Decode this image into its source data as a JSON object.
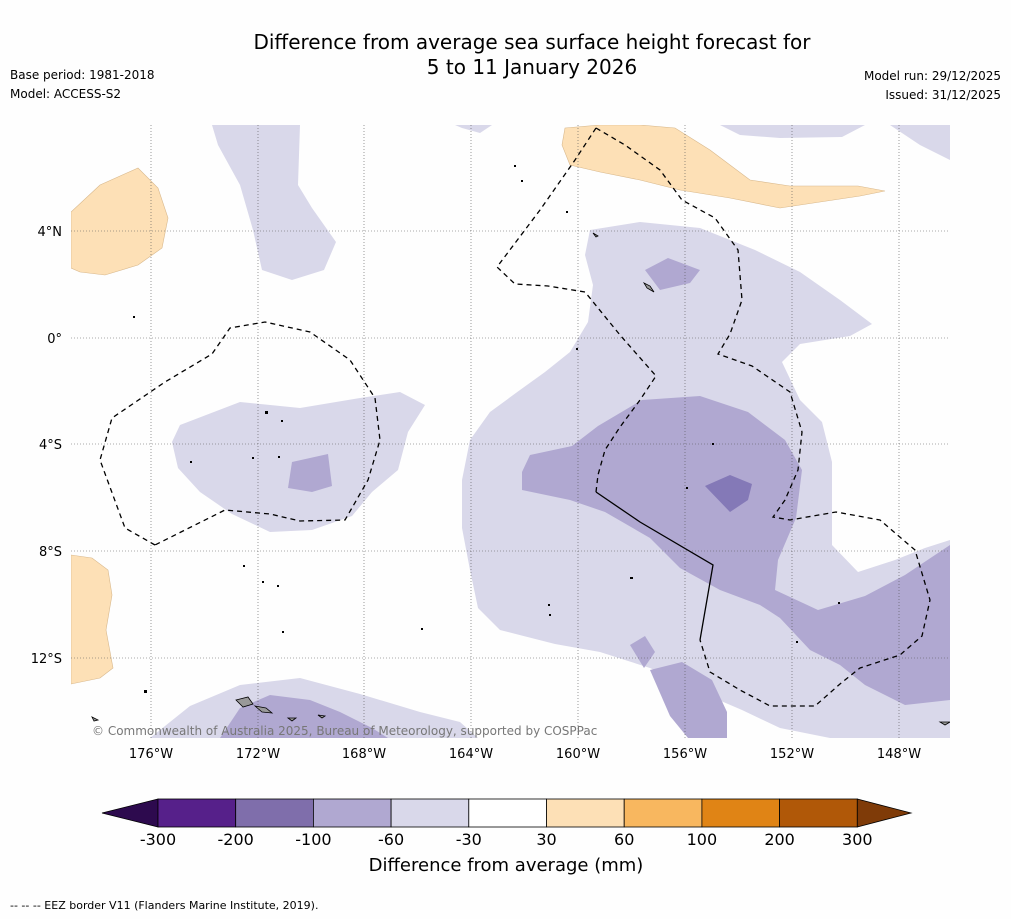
{
  "title": {
    "line1": "Difference from average sea surface height forecast for",
    "line2": "5 to 11 January 2026"
  },
  "meta_left": {
    "base_period": "Base period: 1981-2018",
    "model": "Model: ACCESS-S2"
  },
  "meta_right": {
    "model_run": "Model run: 29/12/2025",
    "issued": "Issued: 31/12/2025"
  },
  "map": {
    "lat_labels": [
      "4°N",
      "0°",
      "4°S",
      "8°S",
      "12°S"
    ],
    "lon_labels": [
      "176°W",
      "172°W",
      "168°W",
      "164°W",
      "160°W",
      "156°W",
      "152°W",
      "148°W"
    ],
    "copyright": "© Commonwealth of Australia 2025, Bureau of Meteorology, supported by COSPPac"
  },
  "colorbar": {
    "title": "Difference from average (mm)",
    "ticks": [
      "-300",
      "-200",
      "-100",
      "-60",
      "-30",
      "30",
      "60",
      "100",
      "200",
      "300"
    ],
    "colors": [
      "#2d0a4e",
      "#56208a",
      "#7f6eab",
      "#b0a8d1",
      "#d9d8ea",
      "#ffffff",
      "#fde0b6",
      "#f8b75f",
      "#e08415",
      "#b05808",
      "#7f3b08"
    ]
  },
  "footer": {
    "legend_text": "--  --  -- EEZ border V11 (Flanders Marine Institute, 2019)."
  }
}
